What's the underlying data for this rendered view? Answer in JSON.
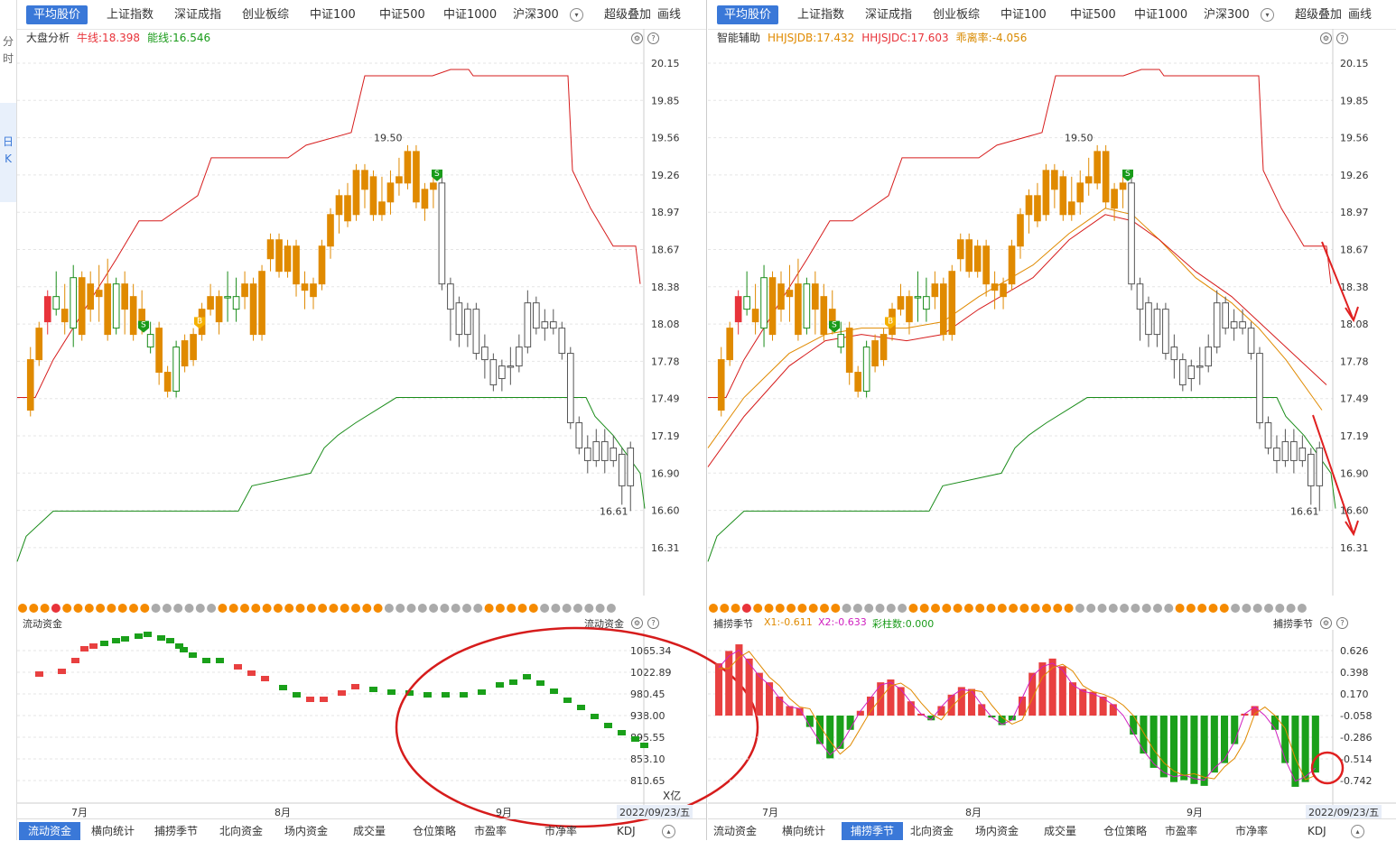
{
  "sidebar": {
    "tabs": [
      {
        "label": "分"
      },
      {
        "label": "时"
      },
      {
        "label": "日"
      },
      {
        "label": "K"
      }
    ]
  },
  "left": {
    "tabs": [
      "平均股价",
      "上证指数",
      "深证成指",
      "创业板综",
      "中证100",
      "中证500",
      "中证1000",
      "沪深300"
    ],
    "extra": [
      "超级叠加",
      "画线"
    ],
    "indicator": {
      "name": "大盘分析",
      "items": [
        {
          "text": "牛线:18.398",
          "color": "#e8333a"
        },
        {
          "text": "能线:16.546",
          "color": "#1a9b1a"
        }
      ]
    },
    "price_labels": [
      "20.15",
      "19.85",
      "19.56",
      "19.26",
      "18.97",
      "18.67",
      "18.38",
      "18.08",
      "17.78",
      "17.49",
      "17.19",
      "16.90",
      "16.60",
      "16.31"
    ],
    "high_label": "19.50",
    "low_label": "16.61",
    "sub_title": "流动资金",
    "sub_title_right": "流动资金",
    "sub_labels": [
      "1065.34",
      "1022.89",
      "980.45",
      "938.00",
      "895.55",
      "853.10",
      "810.65"
    ],
    "sub_unit": "X亿",
    "months": [
      "7月",
      "8月",
      "9月"
    ],
    "date": "2022/09/23/五",
    "bottom_tabs": [
      "流动资金",
      "横向统计",
      "捕捞季节",
      "北向资金",
      "场内资金",
      "成交量",
      "仓位策略",
      "市盈率",
      "市净率",
      "KDJ"
    ]
  },
  "right": {
    "tabs": [
      "平均股价",
      "上证指数",
      "深证成指",
      "创业板综",
      "中证100",
      "中证500",
      "中证1000",
      "沪深300"
    ],
    "extra": [
      "超级叠加",
      "画线"
    ],
    "indicator": {
      "name": "智能辅助",
      "items": [
        {
          "text": "HHJSJDB:17.432",
          "color": "#e08a00"
        },
        {
          "text": "HHJSJDC:17.603",
          "color": "#e8333a"
        },
        {
          "text": "乖离率:-4.056",
          "color": "#d98a00"
        }
      ]
    },
    "price_labels": [
      "20.15",
      "19.85",
      "19.56",
      "19.26",
      "18.97",
      "18.67",
      "18.38",
      "18.08",
      "17.78",
      "17.49",
      "17.19",
      "16.90",
      "16.60",
      "16.31"
    ],
    "high_label": "19.50",
    "low_label": "16.61",
    "sub_title": "捕捞季节",
    "sub_title_right": "捕捞季节",
    "sub_items": [
      {
        "text": "X1:-0.611",
        "color": "#e08a00"
      },
      {
        "text": "X2:-0.633",
        "color": "#d020c0"
      },
      {
        "text": "彩柱数:0.000",
        "color": "#1a9b1a"
      }
    ],
    "sub_labels": [
      "0.626",
      "0.398",
      "0.170",
      "-0.058",
      "-0.286",
      "-0.514",
      "-0.742"
    ],
    "months": [
      "7月",
      "8月",
      "9月"
    ],
    "date": "2022/09/23/五",
    "bottom_tabs": [
      "流动资金",
      "横向统计",
      "捕捞季节",
      "北向资金",
      "场内资金",
      "成交量",
      "仓位策略",
      "市盈率",
      "市净率",
      "KDJ"
    ]
  },
  "signals": {
    "sell": "S",
    "buy": "B"
  },
  "chart_data": {
    "type": "candlestick",
    "y_range": [
      16.2,
      20.25
    ],
    "candles": [
      [
        17.4,
        17.8,
        17.35,
        17.9
      ],
      [
        17.8,
        18.05,
        17.75,
        18.1
      ],
      [
        18.1,
        18.3,
        18.0,
        18.35
      ],
      [
        18.3,
        18.2,
        18.15,
        18.5
      ],
      [
        18.2,
        18.1,
        18.0,
        18.4
      ],
      [
        18.45,
        18.05,
        17.9,
        18.55
      ],
      [
        18.0,
        18.45,
        17.95,
        18.5
      ],
      [
        18.4,
        18.2,
        18.1,
        18.5
      ],
      [
        18.3,
        18.35,
        18.1,
        18.55
      ],
      [
        18.4,
        18.0,
        17.95,
        18.6
      ],
      [
        18.05,
        18.4,
        18.0,
        18.45
      ],
      [
        18.4,
        18.2,
        18.0,
        18.5
      ],
      [
        18.0,
        18.3,
        17.95,
        18.4
      ],
      [
        18.1,
        18.2,
        18.0,
        18.35
      ],
      [
        18.0,
        17.9,
        17.85,
        18.1
      ],
      [
        18.05,
        17.7,
        17.6,
        18.1
      ],
      [
        17.7,
        17.55,
        17.5,
        17.75
      ],
      [
        17.55,
        17.9,
        17.5,
        17.95
      ],
      [
        17.95,
        17.75,
        17.7,
        18.0
      ],
      [
        17.8,
        18.0,
        17.75,
        18.05
      ],
      [
        18.0,
        18.2,
        17.95,
        18.25
      ],
      [
        18.2,
        18.3,
        18.15,
        18.4
      ],
      [
        18.1,
        18.3,
        18.0,
        18.35
      ],
      [
        18.3,
        18.3,
        18.1,
        18.5
      ],
      [
        18.3,
        18.2,
        18.1,
        18.45
      ],
      [
        18.4,
        18.3,
        18.2,
        18.5
      ],
      [
        18.4,
        18.0,
        17.95,
        18.45
      ],
      [
        18.0,
        18.5,
        17.95,
        18.55
      ],
      [
        18.6,
        18.75,
        18.5,
        18.8
      ],
      [
        18.75,
        18.5,
        18.45,
        18.8
      ],
      [
        18.5,
        18.7,
        18.45,
        18.75
      ],
      [
        18.7,
        18.4,
        18.3,
        18.75
      ],
      [
        18.4,
        18.35,
        18.2,
        18.5
      ],
      [
        18.3,
        18.4,
        18.2,
        18.45
      ],
      [
        18.4,
        18.7,
        18.35,
        18.75
      ],
      [
        18.7,
        18.95,
        18.6,
        19.0
      ],
      [
        18.95,
        19.1,
        18.8,
        19.15
      ],
      [
        19.1,
        18.9,
        18.85,
        19.2
      ],
      [
        18.95,
        19.3,
        18.9,
        19.35
      ],
      [
        19.3,
        19.15,
        19.0,
        19.35
      ],
      [
        19.25,
        18.95,
        18.9,
        19.3
      ],
      [
        18.95,
        19.05,
        18.9,
        19.25
      ],
      [
        19.05,
        19.2,
        18.95,
        19.3
      ],
      [
        19.25,
        19.2,
        19.1,
        19.4
      ],
      [
        19.2,
        19.45,
        19.15,
        19.5
      ],
      [
        19.45,
        19.05,
        19.0,
        19.5
      ],
      [
        19.0,
        19.15,
        18.9,
        19.2
      ],
      [
        19.15,
        19.2,
        19.0,
        19.25
      ],
      [
        19.2,
        18.4,
        18.35,
        19.25
      ],
      [
        18.4,
        18.2,
        17.95,
        18.45
      ],
      [
        18.25,
        18.0,
        17.9,
        18.3
      ],
      [
        18.0,
        18.2,
        17.9,
        18.25
      ],
      [
        18.2,
        17.85,
        17.8,
        18.25
      ],
      [
        17.9,
        17.8,
        17.65,
        18.0
      ],
      [
        17.8,
        17.6,
        17.55,
        17.85
      ],
      [
        17.65,
        17.75,
        17.55,
        17.8
      ],
      [
        17.75,
        17.75,
        17.6,
        17.9
      ],
      [
        17.75,
        17.9,
        17.7,
        18.0
      ],
      [
        17.9,
        18.25,
        17.85,
        18.35
      ],
      [
        18.25,
        18.05,
        18.0,
        18.3
      ],
      [
        18.05,
        18.1,
        17.95,
        18.2
      ],
      [
        18.1,
        18.05,
        18.0,
        18.2
      ],
      [
        18.05,
        17.85,
        17.8,
        18.1
      ],
      [
        17.85,
        17.3,
        17.25,
        17.9
      ],
      [
        17.3,
        17.1,
        17.05,
        17.35
      ],
      [
        17.1,
        17.0,
        16.9,
        17.2
      ],
      [
        17.0,
        17.15,
        16.95,
        17.25
      ],
      [
        17.15,
        17.0,
        16.9,
        17.25
      ],
      [
        17.0,
        17.1,
        16.95,
        17.2
      ],
      [
        17.05,
        16.8,
        16.65,
        17.1
      ],
      [
        16.8,
        17.1,
        16.6,
        17.15
      ]
    ]
  }
}
